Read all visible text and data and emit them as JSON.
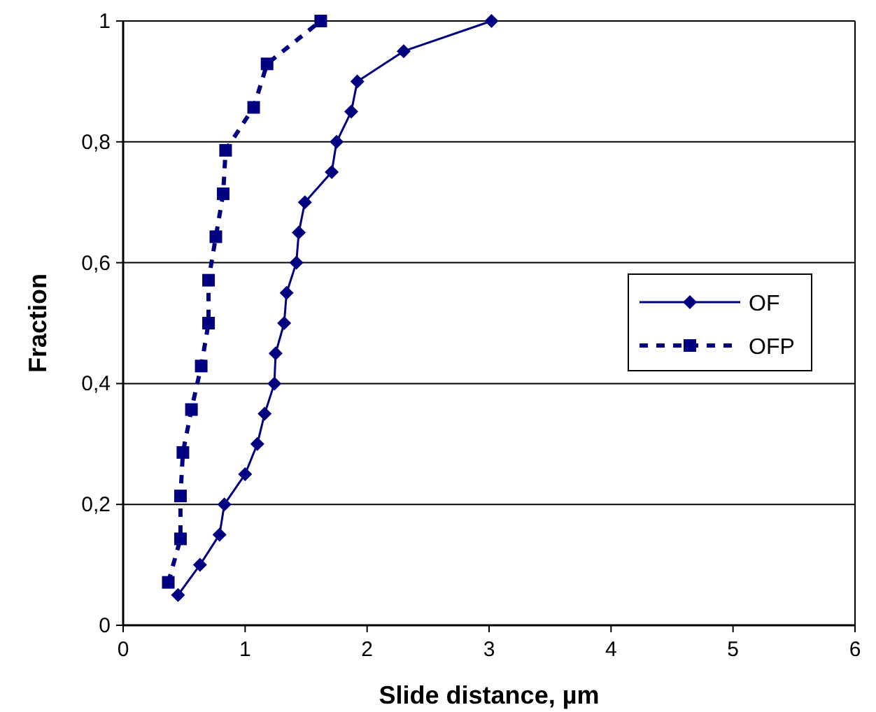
{
  "chart_data": {
    "type": "line",
    "xlabel": "Slide distance, µm",
    "ylabel": "Fraction",
    "xlim": [
      0,
      6
    ],
    "xticks": [
      0,
      1,
      2,
      3,
      4,
      5,
      6
    ],
    "ylim": [
      0,
      1
    ],
    "yticks": [
      0,
      {
        "value": 0.2,
        "label": "0,2"
      },
      {
        "value": 0.4,
        "label": "0,4"
      },
      {
        "value": 0.6,
        "label": "0,6"
      },
      {
        "value": 0.8,
        "label": "0,8"
      },
      1
    ],
    "grid": "y",
    "legend": "right",
    "series": [
      {
        "name": "OF",
        "color": "#000080",
        "marker": "diamond",
        "line_style": "solid",
        "x": [
          0.45,
          0.63,
          0.79,
          0.83,
          1.0,
          1.1,
          1.16,
          1.24,
          1.25,
          1.32,
          1.34,
          1.42,
          1.44,
          1.49,
          1.71,
          1.75,
          1.87,
          1.92,
          2.3,
          3.02
        ],
        "values": [
          0.05,
          0.1,
          0.15,
          0.2,
          0.25,
          0.3,
          0.35,
          0.4,
          0.45,
          0.5,
          0.55,
          0.6,
          0.65,
          0.7,
          0.75,
          0.8,
          0.85,
          0.9,
          0.95,
          1.0
        ]
      },
      {
        "name": "OFP",
        "color": "#000080",
        "marker": "square",
        "line_style": "dashed",
        "x": [
          0.37,
          0.47,
          0.47,
          0.49,
          0.56,
          0.64,
          0.7,
          0.7,
          0.76,
          0.82,
          0.84,
          1.07,
          1.18,
          1.62
        ],
        "values": [
          0.071,
          0.143,
          0.214,
          0.286,
          0.357,
          0.429,
          0.5,
          0.571,
          0.643,
          0.714,
          0.786,
          0.857,
          0.929,
          1.0
        ]
      }
    ]
  }
}
